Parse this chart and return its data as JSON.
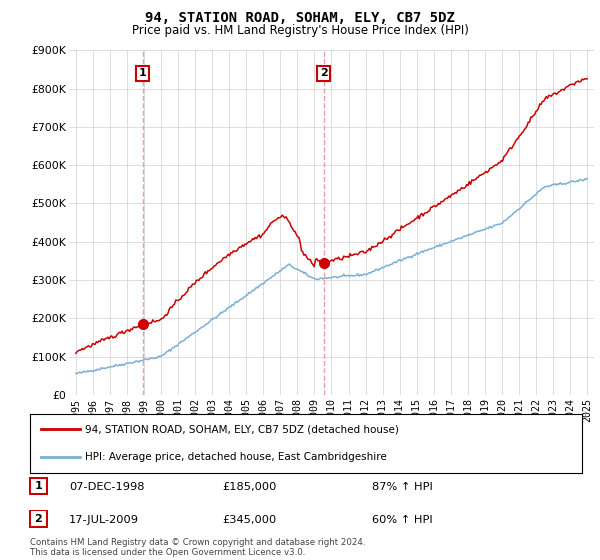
{
  "title": "94, STATION ROAD, SOHAM, ELY, CB7 5DZ",
  "subtitle": "Price paid vs. HM Land Registry's House Price Index (HPI)",
  "ylabel_ticks": [
    "£0",
    "£100K",
    "£200K",
    "£300K",
    "£400K",
    "£500K",
    "£600K",
    "£700K",
    "£800K",
    "£900K"
  ],
  "ytick_values": [
    0,
    100000,
    200000,
    300000,
    400000,
    500000,
    600000,
    700000,
    800000,
    900000
  ],
  "ylim": [
    0,
    900000
  ],
  "sale1": {
    "date_num": 1998.93,
    "price": 185000,
    "label": "1",
    "date_str": "07-DEC-1998",
    "hpi_pct": "87% ↑ HPI"
  },
  "sale2": {
    "date_num": 2009.54,
    "price": 345000,
    "label": "2",
    "date_str": "17-JUL-2009",
    "hpi_pct": "60% ↑ HPI"
  },
  "legend_line1": "94, STATION ROAD, SOHAM, ELY, CB7 5DZ (detached house)",
  "legend_line2": "HPI: Average price, detached house, East Cambridgeshire",
  "footer": "Contains HM Land Registry data © Crown copyright and database right 2024.\nThis data is licensed under the Open Government Licence v3.0.",
  "line_color_red": "#cc0000",
  "line_color_blue": "#7ab0d4",
  "vline_color": "#e8a0a0",
  "background_color": "#ffffff",
  "grid_color": "#d0d0d0",
  "xmin": 1994.6,
  "xmax": 2025.4,
  "xticks": [
    1995,
    1996,
    1997,
    1998,
    1999,
    2000,
    2001,
    2002,
    2003,
    2004,
    2005,
    2006,
    2007,
    2008,
    2009,
    2010,
    2011,
    2012,
    2013,
    2014,
    2015,
    2016,
    2017,
    2018,
    2019,
    2020,
    2021,
    2022,
    2023,
    2024,
    2025
  ]
}
